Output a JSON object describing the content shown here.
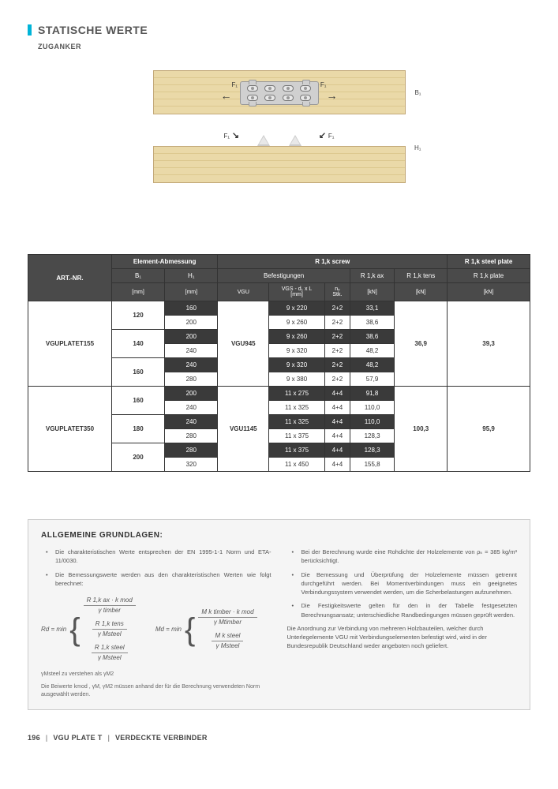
{
  "header": {
    "title": "STATISCHE WERTE",
    "subtitle": "ZUGANKER"
  },
  "diagram": {
    "f1": "F₁",
    "b1": "B₁",
    "h1": "H₁"
  },
  "table": {
    "head": {
      "art": "ART.-NR.",
      "elem": "Element-Abmessung",
      "rscrew": "R 1,k screw",
      "rplate_h": "R 1,k steel plate",
      "bef": "Befestigungen",
      "rax": "R 1,k ax",
      "rtens": "R 1,k tens",
      "rplate": "R 1,k plate",
      "b1": "B₁",
      "h1": "H₁",
      "vgu": "VGU",
      "vgs": "VGS - d₁ x L",
      "nv": "nᵥ",
      "u_mm": "[mm]",
      "u_stk": "Stk.",
      "u_kn": "[kN]"
    },
    "groups": [
      {
        "art": "VGUPLATET155",
        "vgu": "VGU945",
        "rtens": "36,9",
        "rplate": "39,3",
        "rows": [
          {
            "b": "120",
            "h": "160",
            "vgs": "9 x 220",
            "nv": "2+2",
            "rax": "33,1",
            "shade": true
          },
          {
            "b": "",
            "h": "200",
            "vgs": "9 x 260",
            "nv": "2+2",
            "rax": "38,6",
            "shade": false
          },
          {
            "b": "140",
            "h": "200",
            "vgs": "9 x 260",
            "nv": "2+2",
            "rax": "38,6",
            "shade": true
          },
          {
            "b": "",
            "h": "240",
            "vgs": "9 x 320",
            "nv": "2+2",
            "rax": "48,2",
            "shade": false
          },
          {
            "b": "160",
            "h": "240",
            "vgs": "9 x 320",
            "nv": "2+2",
            "rax": "48,2",
            "shade": true
          },
          {
            "b": "",
            "h": "280",
            "vgs": "9 x 380",
            "nv": "2+2",
            "rax": "57,9",
            "shade": false
          }
        ]
      },
      {
        "art": "VGUPLATET350",
        "vgu": "VGU1145",
        "rtens": "100,3",
        "rplate": "95,9",
        "rows": [
          {
            "b": "160",
            "h": "200",
            "vgs": "11 x 275",
            "nv": "4+4",
            "rax": "91,8",
            "shade": true
          },
          {
            "b": "",
            "h": "240",
            "vgs": "11 x 325",
            "nv": "4+4",
            "rax": "110,0",
            "shade": false
          },
          {
            "b": "180",
            "h": "240",
            "vgs": "11 x 325",
            "nv": "4+4",
            "rax": "110,0",
            "shade": true
          },
          {
            "b": "",
            "h": "280",
            "vgs": "11 x 375",
            "nv": "4+4",
            "rax": "128,3",
            "shade": false
          },
          {
            "b": "200",
            "h": "280",
            "vgs": "11 x 375",
            "nv": "4+4",
            "rax": "128,3",
            "shade": true
          },
          {
            "b": "",
            "h": "320",
            "vgs": "11 x 450",
            "nv": "4+4",
            "rax": "155,8",
            "shade": false
          }
        ]
      }
    ]
  },
  "notes": {
    "title": "ALLGEMEINE GRUNDLAGEN:",
    "left": [
      "Die charakteristischen Werte entsprechen der EN 1995-1-1 Norm und ETA-11/0030.",
      "Die Bemessungswerte werden aus den charakteristischen Werten wie folgt berechnet:"
    ],
    "right": [
      "Bei der Berechnung wurde eine Rohdichte der Holzelemente von ρₖ = 385 kg/m³ berücksichtigt.",
      "Die Bemessung und Überprüfung der Holzelemente müssen getrennt durchgeführt werden. Bei Momentverbindungen muss ein geeignetes Verbindungssystem verwendet werden, um die Scherbelastungen aufzunehmen.",
      "Die Festigkeitswerte gelten für den in der Tabelle festgesetzten Berechnungsansatz; unterschiedliche Randbedingungen müssen geprüft werden."
    ],
    "right_extra": "Die Anordnung zur Verbindung von mehreren Holzbauteilen, welcher durch Unterlegelemente VGU mit Verbindungselementen befestigt wird, wird in der Bundesrepublik Deutschland weder angeboten noch geliefert.",
    "formula": {
      "rd": "Rd = min",
      "md": "Md = min",
      "r1_num": "R 1,k ax · k mod",
      "r1_den": "γ timber",
      "r2_num": "R 1,k tens",
      "r2_den": "γ Msteel",
      "r3_num": "R 1,k steel",
      "r3_den": "γ Msteel",
      "m1_num": "M k timber · k mod",
      "m1_den": "γ Mtimber",
      "m2_num": "M k steel",
      "m2_den": "γ Msteel"
    },
    "foot1": "γMsteel zu verstehen als γM2",
    "foot2": "Die Beiwerte kmod , γM, γM2 müssen anhand der für die Berechnung verwendeten Norm ausgewählt werden."
  },
  "footer": {
    "page": "196",
    "product": "VGU PLATE T",
    "cat": "VERDECKTE VERBINDER"
  }
}
